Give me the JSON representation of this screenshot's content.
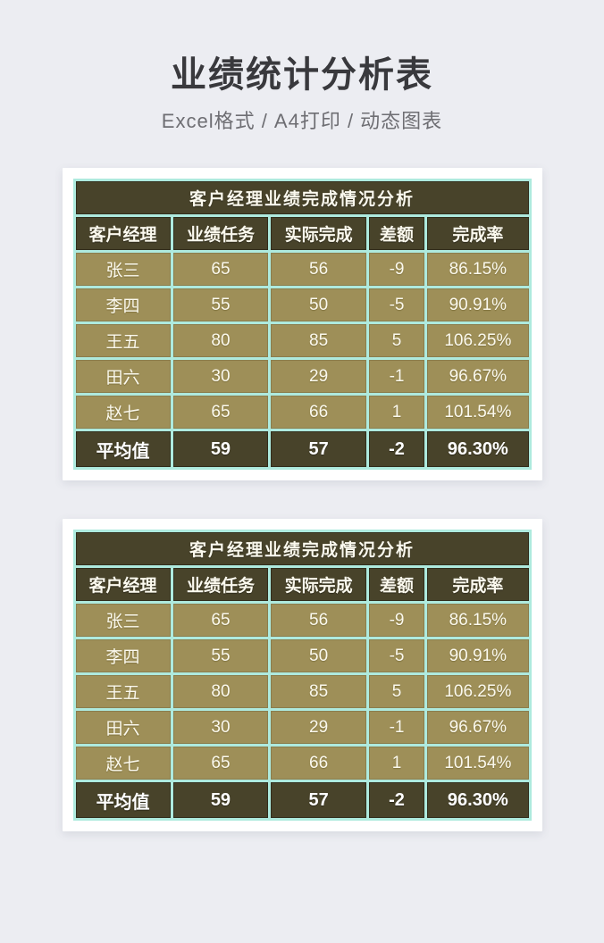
{
  "header": {
    "title": "业绩统计分析表",
    "subtitle": "Excel格式 / A4打印 / 动态图表"
  },
  "table": {
    "title": "客户经理业绩完成情况分析",
    "columns": [
      "客户经理",
      "业绩任务",
      "实际完成",
      "差额",
      "完成率"
    ],
    "rows": [
      [
        "张三",
        "65",
        "56",
        "-9",
        "86.15%"
      ],
      [
        "李四",
        "55",
        "50",
        "-5",
        "90.91%"
      ],
      [
        "王五",
        "80",
        "85",
        "5",
        "106.25%"
      ],
      [
        "田六",
        "30",
        "29",
        "-1",
        "96.67%"
      ],
      [
        "赵七",
        "65",
        "66",
        "1",
        "101.54%"
      ]
    ],
    "summary": [
      "平均值",
      "59",
      "57",
      "-2",
      "96.30%"
    ]
  },
  "colors": {
    "page_background": "#ecedf2",
    "card_background": "#ffffff",
    "dark_cell": "#48432a",
    "khaki_cell": "#9e8f58",
    "cell_border": "#aeeade",
    "title_text": "#39393d",
    "subtitle_text": "#6e6e73",
    "cell_text": "#fbf9ee"
  }
}
